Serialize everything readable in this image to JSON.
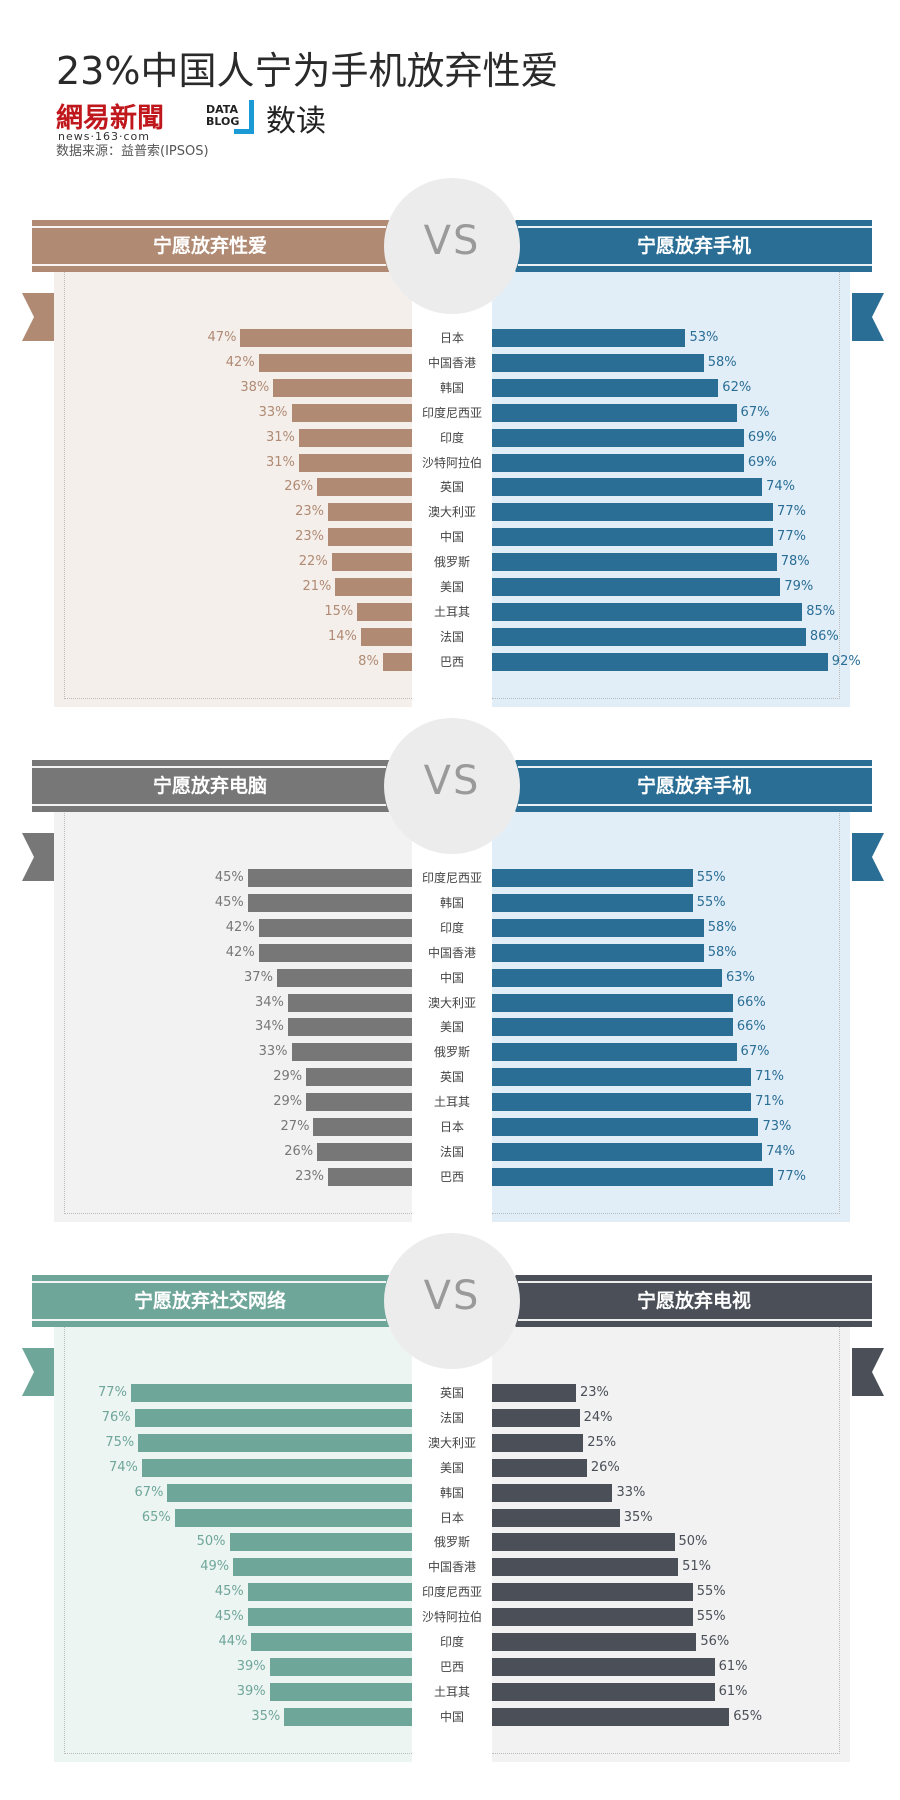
{
  "page": {
    "title": "23%中国人宁为手机放弃性爱",
    "brand": {
      "netease_logo": "網易新聞",
      "netease_url": "news·163·com",
      "datablog": "DATA BLOG",
      "shudu": "数读"
    },
    "source": "数据来源：益普索(IPSOS)"
  },
  "chart_data": [
    {
      "type": "bar",
      "vs_label": "VS",
      "left": {
        "title": "宁愿放弃性爱",
        "color": "#b08a73",
        "rows": [
          {
            "country": "日本",
            "value": 47
          },
          {
            "country": "中国香港",
            "value": 42
          },
          {
            "country": "韩国",
            "value": 38
          },
          {
            "country": "印度尼西亚",
            "value": 33
          },
          {
            "country": "印度",
            "value": 31
          },
          {
            "country": "沙特阿拉伯",
            "value": 31
          },
          {
            "country": "英国",
            "value": 26
          },
          {
            "country": "澳大利亚",
            "value": 23
          },
          {
            "country": "中国",
            "value": 23
          },
          {
            "country": "俄罗斯",
            "value": 22
          },
          {
            "country": "美国",
            "value": 21
          },
          {
            "country": "土耳其",
            "value": 15
          },
          {
            "country": "法国",
            "value": 14
          },
          {
            "country": "巴西",
            "value": 8
          }
        ]
      },
      "right": {
        "title": "宁愿放弃手机",
        "color": "#2a6e96",
        "rows": [
          {
            "value": 53
          },
          {
            "value": 58
          },
          {
            "value": 62
          },
          {
            "value": 67
          },
          {
            "value": 69
          },
          {
            "value": 69
          },
          {
            "value": 74
          },
          {
            "value": 77
          },
          {
            "value": 77
          },
          {
            "value": 78
          },
          {
            "value": 79
          },
          {
            "value": 85
          },
          {
            "value": 86
          },
          {
            "value": 92
          }
        ]
      },
      "panel_bg_left": "#f4efeb",
      "panel_bg_right": "#e2eef7"
    },
    {
      "type": "bar",
      "vs_label": "VS",
      "left": {
        "title": "宁愿放弃电脑",
        "color": "#777777",
        "rows": [
          {
            "country": "印度尼西亚",
            "value": 45
          },
          {
            "country": "韩国",
            "value": 45
          },
          {
            "country": "印度",
            "value": 42
          },
          {
            "country": "中国香港",
            "value": 42
          },
          {
            "country": "中国",
            "value": 37
          },
          {
            "country": "澳大利亚",
            "value": 34
          },
          {
            "country": "美国",
            "value": 34
          },
          {
            "country": "俄罗斯",
            "value": 33
          },
          {
            "country": "英国",
            "value": 29
          },
          {
            "country": "土耳其",
            "value": 29
          },
          {
            "country": "日本",
            "value": 27
          },
          {
            "country": "法国",
            "value": 26
          },
          {
            "country": "巴西",
            "value": 23
          }
        ]
      },
      "right": {
        "title": "宁愿放弃手机",
        "color": "#2a6e96",
        "rows": [
          {
            "value": 55
          },
          {
            "value": 55
          },
          {
            "value": 58
          },
          {
            "value": 58
          },
          {
            "value": 63
          },
          {
            "value": 66
          },
          {
            "value": 66
          },
          {
            "value": 67
          },
          {
            "value": 71
          },
          {
            "value": 71
          },
          {
            "value": 73
          },
          {
            "value": 74
          },
          {
            "value": 77
          }
        ]
      },
      "panel_bg_left": "#f2f2f2",
      "panel_bg_right": "#e2eef7"
    },
    {
      "type": "bar",
      "vs_label": "VS",
      "left": {
        "title": "宁愿放弃社交网络",
        "color": "#6fa69a",
        "rows": [
          {
            "country": "英国",
            "value": 77
          },
          {
            "country": "法国",
            "value": 76
          },
          {
            "country": "澳大利亚",
            "value": 75
          },
          {
            "country": "美国",
            "value": 74
          },
          {
            "country": "韩国",
            "value": 67
          },
          {
            "country": "日本",
            "value": 65
          },
          {
            "country": "俄罗斯",
            "value": 50
          },
          {
            "country": "中国香港",
            "value": 49
          },
          {
            "country": "印度尼西亚",
            "value": 45
          },
          {
            "country": "沙特阿拉伯",
            "value": 45
          },
          {
            "country": "印度",
            "value": 44
          },
          {
            "country": "巴西",
            "value": 39
          },
          {
            "country": "土耳其",
            "value": 39
          },
          {
            "country": "中国",
            "value": 35
          }
        ]
      },
      "right": {
        "title": "宁愿放弃电视",
        "color": "#4a4f58",
        "rows": [
          {
            "value": 23
          },
          {
            "value": 24
          },
          {
            "value": 25
          },
          {
            "value": 26
          },
          {
            "value": 33
          },
          {
            "value": 35
          },
          {
            "value": 50
          },
          {
            "value": 51
          },
          {
            "value": 55
          },
          {
            "value": 55
          },
          {
            "value": 56
          },
          {
            "value": 61
          },
          {
            "value": 61
          },
          {
            "value": 65
          }
        ]
      },
      "panel_bg_left": "#edf5f3",
      "panel_bg_right": "#f2f2f2"
    }
  ]
}
